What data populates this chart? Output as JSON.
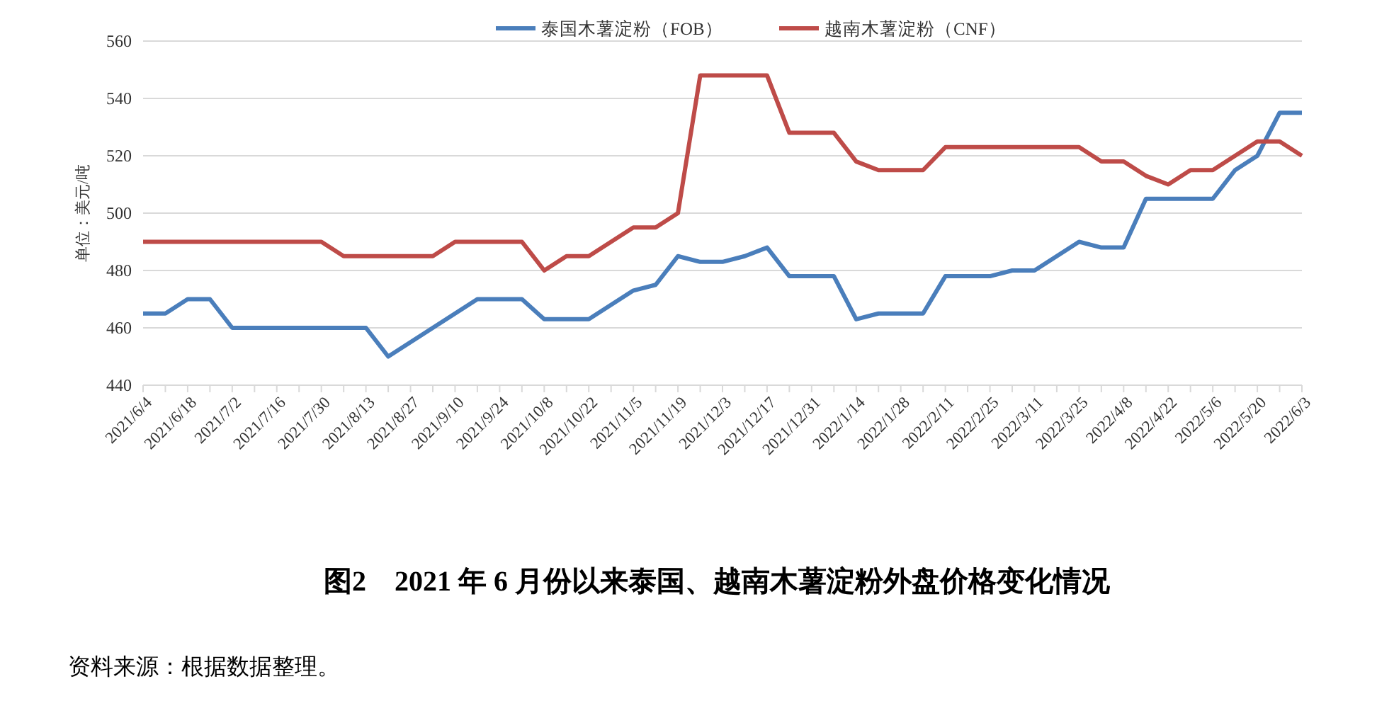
{
  "chart_data": {
    "type": "line",
    "title": "图2　2021 年 6 月份以来泰国、越南木薯淀粉外盘价格变化情况",
    "ylabel": "单位：美元/吨",
    "annotations": [
      "资料来源：根据数据整理。"
    ],
    "categories": [
      "2021/6/4",
      null,
      "2021/6/18",
      null,
      "2021/7/2",
      null,
      "2021/7/16",
      null,
      "2021/7/30",
      null,
      "2021/8/13",
      null,
      "2021/8/27",
      null,
      "2021/9/10",
      null,
      "2021/9/24",
      null,
      "2021/10/8",
      null,
      "2021/10/22",
      null,
      "2021/11/5",
      null,
      "2021/11/19",
      null,
      "2021/12/3",
      null,
      "2021/12/17",
      null,
      "2021/12/31",
      null,
      "2022/1/14",
      null,
      "2022/1/28",
      null,
      "2022/2/11",
      null,
      "2022/2/25",
      null,
      "2022/3/11",
      null,
      "2022/3/25",
      null,
      "2022/4/8",
      null,
      "2022/4/22",
      null,
      "2022/5/6",
      null,
      "2022/5/20",
      null,
      "2022/6/3"
    ],
    "series": [
      {
        "name": "泰国木薯淀粉（FOB）",
        "color": "#4a7ebb",
        "values": [
          465,
          465,
          470,
          470,
          460,
          460,
          460,
          460,
          460,
          460,
          460,
          450,
          455,
          460,
          465,
          470,
          470,
          470,
          463,
          463,
          463,
          468,
          473,
          475,
          485,
          483,
          483,
          485,
          488,
          478,
          478,
          478,
          463,
          465,
          465,
          465,
          478,
          478,
          478,
          480,
          480,
          485,
          490,
          488,
          488,
          505,
          505,
          505,
          505,
          515,
          520,
          535,
          535
        ]
      },
      {
        "name": "越南木薯淀粉（CNF）",
        "color": "#be4b48",
        "values": [
          490,
          490,
          490,
          490,
          490,
          490,
          490,
          490,
          490,
          485,
          485,
          485,
          485,
          485,
          490,
          490,
          490,
          490,
          480,
          485,
          485,
          490,
          495,
          495,
          500,
          548,
          548,
          548,
          548,
          528,
          528,
          528,
          518,
          515,
          515,
          515,
          523,
          523,
          523,
          523,
          523,
          523,
          523,
          518,
          518,
          513,
          510,
          515,
          515,
          520,
          525,
          525,
          520
        ]
      }
    ],
    "ylim": [
      440,
      560
    ],
    "yticks": [
      440,
      460,
      480,
      500,
      520,
      540,
      560
    ],
    "grid": "y",
    "legend": "top",
    "marker": "none",
    "line_style": "solid"
  }
}
